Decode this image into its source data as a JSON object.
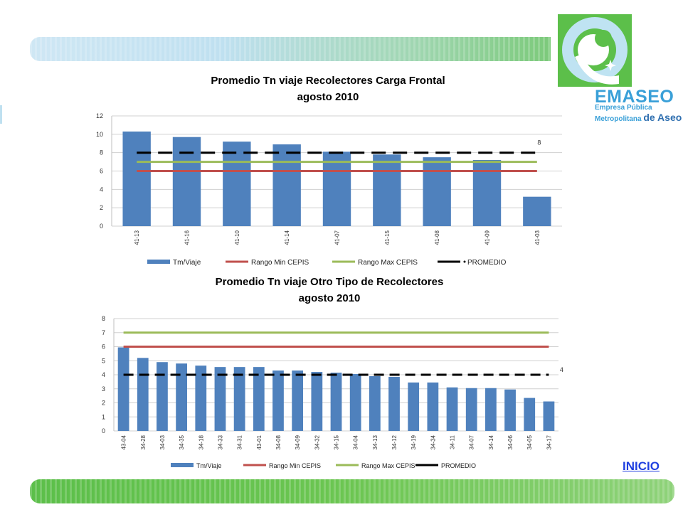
{
  "logo": {
    "word": "EMASEO",
    "line1": "Empresa Pública",
    "line2_a": "Metropolitana ",
    "line2_b": "de Aseo"
  },
  "nav": {
    "inicio_label": "INICIO"
  },
  "colors": {
    "bar": "#4f81bd",
    "rango_min": "#c0504d",
    "rango_max": "#9bbb59",
    "promedio": "#000000"
  },
  "chart_data": [
    {
      "type": "bar",
      "title": "Promedio Tn viaje Recolectores Carga Frontal",
      "subtitle": "agosto  2010",
      "categories": [
        "41-13",
        "41-16",
        "41-10",
        "41-14",
        "41-07",
        "41-15",
        "41-08",
        "41-09",
        "41-03"
      ],
      "ylim": [
        0,
        12
      ],
      "yticks": [
        0,
        2,
        4,
        6,
        8,
        10,
        12
      ],
      "grid": true,
      "legend_position": "bottom",
      "series": [
        {
          "name": "Tm/Viaje",
          "kind": "bar",
          "values": [
            10.3,
            9.7,
            9.2,
            8.9,
            8.1,
            7.8,
            7.5,
            7.2,
            3.2
          ]
        },
        {
          "name": "Rango Min CEPIS",
          "kind": "line",
          "values": [
            6,
            6,
            6,
            6,
            6,
            6,
            6,
            6,
            6
          ]
        },
        {
          "name": "Rango Max CEPIS",
          "kind": "line",
          "values": [
            7,
            7,
            7,
            7,
            7,
            7,
            7,
            7,
            7
          ]
        },
        {
          "name": "PROMEDIO",
          "kind": "dashed-line",
          "values": [
            8,
            8,
            8,
            8,
            8,
            8,
            8,
            8,
            8
          ]
        }
      ],
      "annotation": "8"
    },
    {
      "type": "bar",
      "title": "Promedio Tn viaje Otro Tipo de Recolectores",
      "subtitle": "agosto 2010",
      "categories": [
        "43-04",
        "34-28",
        "34-03",
        "34-35",
        "34-18",
        "34-33",
        "34-31",
        "43-01",
        "34-08",
        "34-09",
        "34-32",
        "34-15",
        "34-04",
        "34-13",
        "34-12",
        "34-19",
        "34-34",
        "34-11",
        "34-07",
        "34-14",
        "34-06",
        "34-05",
        "34-17"
      ],
      "ylim": [
        0,
        8
      ],
      "yticks": [
        0,
        1,
        2,
        3,
        4,
        5,
        6,
        7,
        8
      ],
      "grid": true,
      "legend_position": "bottom",
      "series": [
        {
          "name": "Tm/Viaje",
          "kind": "bar",
          "values": [
            5.95,
            5.2,
            4.9,
            4.8,
            4.65,
            4.55,
            4.55,
            4.55,
            4.3,
            4.3,
            4.2,
            4.15,
            4.05,
            3.9,
            3.85,
            3.45,
            3.45,
            3.1,
            3.05,
            3.05,
            2.95,
            2.35,
            2.1
          ]
        },
        {
          "name": "Rango Min CEPIS",
          "kind": "line",
          "values": [
            6,
            6,
            6,
            6,
            6,
            6,
            6,
            6,
            6,
            6,
            6,
            6,
            6,
            6,
            6,
            6,
            6,
            6,
            6,
            6,
            6,
            6,
            6
          ]
        },
        {
          "name": "Rango Max CEPIS",
          "kind": "line",
          "values": [
            7,
            7,
            7,
            7,
            7,
            7,
            7,
            7,
            7,
            7,
            7,
            7,
            7,
            7,
            7,
            7,
            7,
            7,
            7,
            7,
            7,
            7,
            7
          ]
        },
        {
          "name": "PROMEDIO",
          "kind": "dashed-line",
          "values": [
            4,
            4,
            4,
            4,
            4,
            4,
            4,
            4,
            4,
            4,
            4,
            4,
            4,
            4,
            4,
            4,
            4,
            4,
            4,
            4,
            4,
            4,
            4
          ]
        }
      ],
      "annotation": "4"
    }
  ]
}
